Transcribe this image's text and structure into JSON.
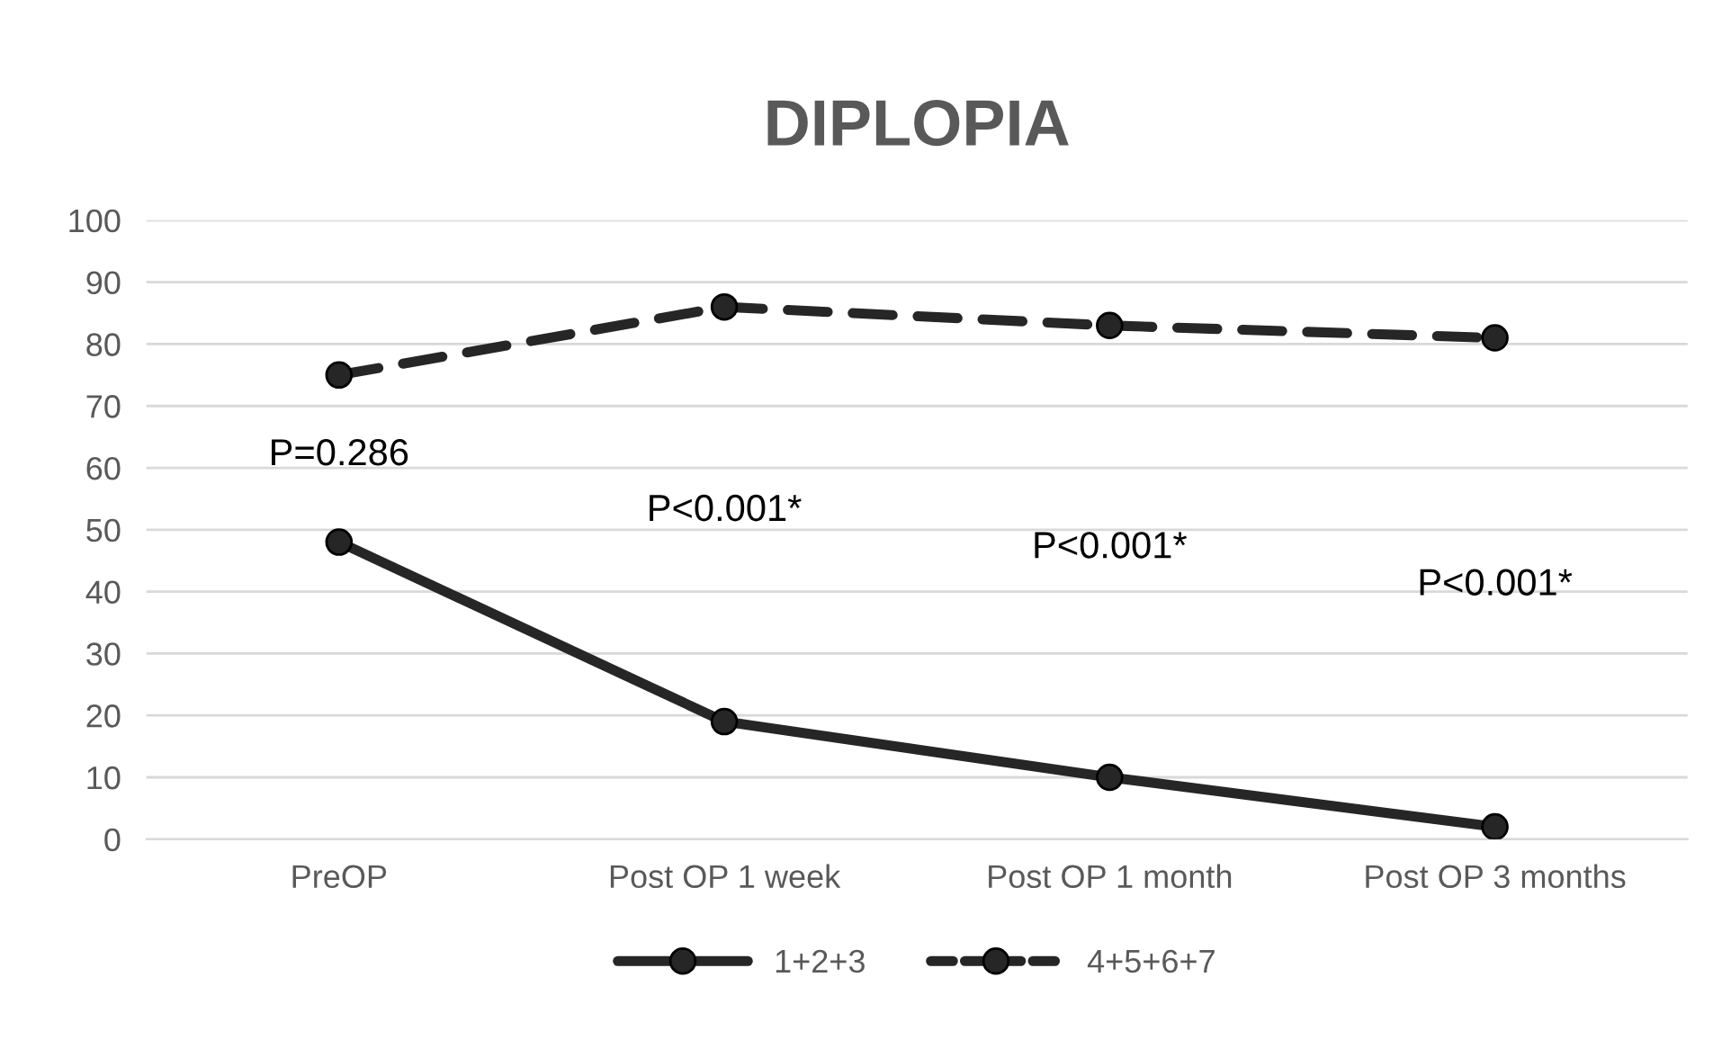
{
  "chart_data": {
    "type": "line",
    "title": "DIPLOPIA",
    "categories": [
      "PreOP",
      "Post OP 1 week",
      "Post OP 1 month",
      "Post OP 3 months"
    ],
    "series": [
      {
        "name": "1+2+3",
        "color": "#262626",
        "values": [
          48,
          19,
          10,
          2
        ],
        "line_style": "solid"
      },
      {
        "name": "4+5+6+7",
        "color": "#262626",
        "values": [
          75,
          86,
          83,
          81
        ],
        "line_style": "dashed"
      }
    ],
    "ylim": [
      0,
      100
    ],
    "yticks": [
      0,
      10,
      20,
      30,
      40,
      50,
      60,
      70,
      80,
      90,
      100
    ],
    "grid": "y",
    "legend": "bottom",
    "marker": "circle",
    "annotations": [
      "P=0.286",
      "P<0.001*",
      "P<0.001*",
      "P<0.001*"
    ]
  }
}
